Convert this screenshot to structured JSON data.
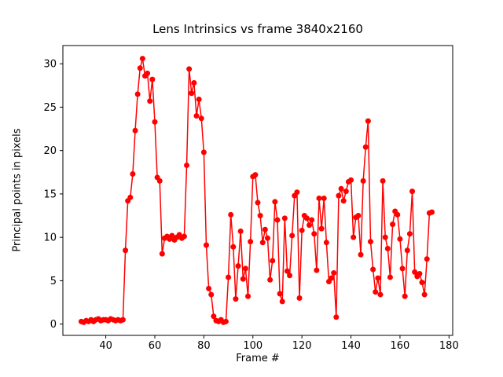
{
  "figure": {
    "background": "#ffffff"
  },
  "chart_data": {
    "type": "line",
    "title": "Lens Intrinsics vs frame 3840x2160",
    "xlabel": "Frame #",
    "ylabel": "Principal points in pixels",
    "line_color": "#ff0000",
    "marker": "circle",
    "marker_size": 3.5,
    "line_width": 1.5,
    "grid": false,
    "legend_position": "none",
    "x_ticks": [
      40,
      60,
      80,
      100,
      120,
      140,
      160,
      180
    ],
    "y_ticks": [
      0,
      5,
      10,
      15,
      20,
      25,
      30
    ],
    "xlim": [
      22.5,
      181.5
    ],
    "ylim": [
      -1.3,
      32.1
    ],
    "x": [
      30,
      31,
      32,
      33,
      34,
      35,
      36,
      37,
      38,
      39,
      40,
      41,
      42,
      43,
      44,
      45,
      46,
      47,
      48,
      49,
      50,
      51,
      52,
      53,
      54,
      55,
      56,
      57,
      58,
      59,
      60,
      61,
      62,
      63,
      64,
      65,
      66,
      67,
      68,
      69,
      70,
      71,
      72,
      73,
      74,
      75,
      76,
      77,
      78,
      79,
      80,
      81,
      82,
      83,
      84,
      85,
      86,
      87,
      88,
      89,
      90,
      91,
      92,
      93,
      94,
      95,
      96,
      97,
      98,
      99,
      100,
      101,
      102,
      103,
      104,
      105,
      106,
      107,
      108,
      109,
      110,
      111,
      112,
      113,
      114,
      115,
      116,
      117,
      118,
      119,
      120,
      121,
      122,
      123,
      124,
      125,
      126,
      127,
      128,
      129,
      130,
      131,
      132,
      133,
      134,
      135,
      136,
      137,
      138,
      139,
      140,
      141,
      142,
      143,
      144,
      145,
      146,
      147,
      148,
      149,
      150,
      151,
      152,
      153,
      154,
      155,
      156,
      157,
      158,
      159,
      160,
      161,
      162,
      163,
      164,
      165,
      166,
      167,
      168,
      169,
      170,
      171,
      172,
      173
    ],
    "y": [
      0.3,
      0.2,
      0.4,
      0.3,
      0.5,
      0.3,
      0.5,
      0.6,
      0.4,
      0.5,
      0.5,
      0.4,
      0.6,
      0.5,
      0.4,
      0.5,
      0.4,
      0.5,
      8.5,
      14.2,
      14.6,
      17.3,
      22.3,
      26.5,
      29.5,
      30.6,
      28.6,
      28.9,
      25.7,
      28.2,
      23.3,
      16.9,
      16.5,
      8.1,
      9.9,
      10.1,
      9.8,
      10.2,
      9.7,
      10.0,
      10.3,
      9.9,
      10.1,
      18.3,
      29.4,
      26.6,
      27.8,
      24.0,
      25.9,
      23.7,
      19.8,
      9.1,
      4.1,
      3.4,
      0.9,
      0.4,
      0.3,
      0.5,
      0.2,
      0.3,
      5.4,
      12.6,
      8.9,
      2.9,
      6.7,
      10.7,
      5.2,
      6.4,
      3.2,
      9.5,
      17.0,
      17.2,
      14.0,
      12.5,
      9.4,
      10.9,
      9.9,
      5.1,
      7.3,
      14.1,
      12.0,
      3.5,
      2.6,
      12.2,
      6.1,
      5.6,
      10.2,
      14.8,
      15.2,
      3.0,
      10.8,
      12.5,
      12.2,
      11.4,
      12.0,
      10.4,
      6.2,
      14.5,
      11.0,
      14.5,
      9.4,
      4.9,
      5.3,
      5.9,
      0.8,
      14.8,
      15.6,
      14.2,
      15.3,
      16.4,
      16.6,
      10.0,
      12.3,
      12.5,
      8.0,
      16.5,
      20.4,
      23.4,
      9.5,
      6.3,
      3.7,
      5.3,
      3.4,
      16.5,
      10.0,
      8.7,
      5.4,
      11.5,
      13.0,
      12.6,
      9.8,
      6.4,
      3.2,
      8.5,
      10.4,
      15.3,
      6.0,
      5.5,
      5.8,
      4.8,
      3.4,
      7.5,
      12.8,
      12.9
    ]
  }
}
